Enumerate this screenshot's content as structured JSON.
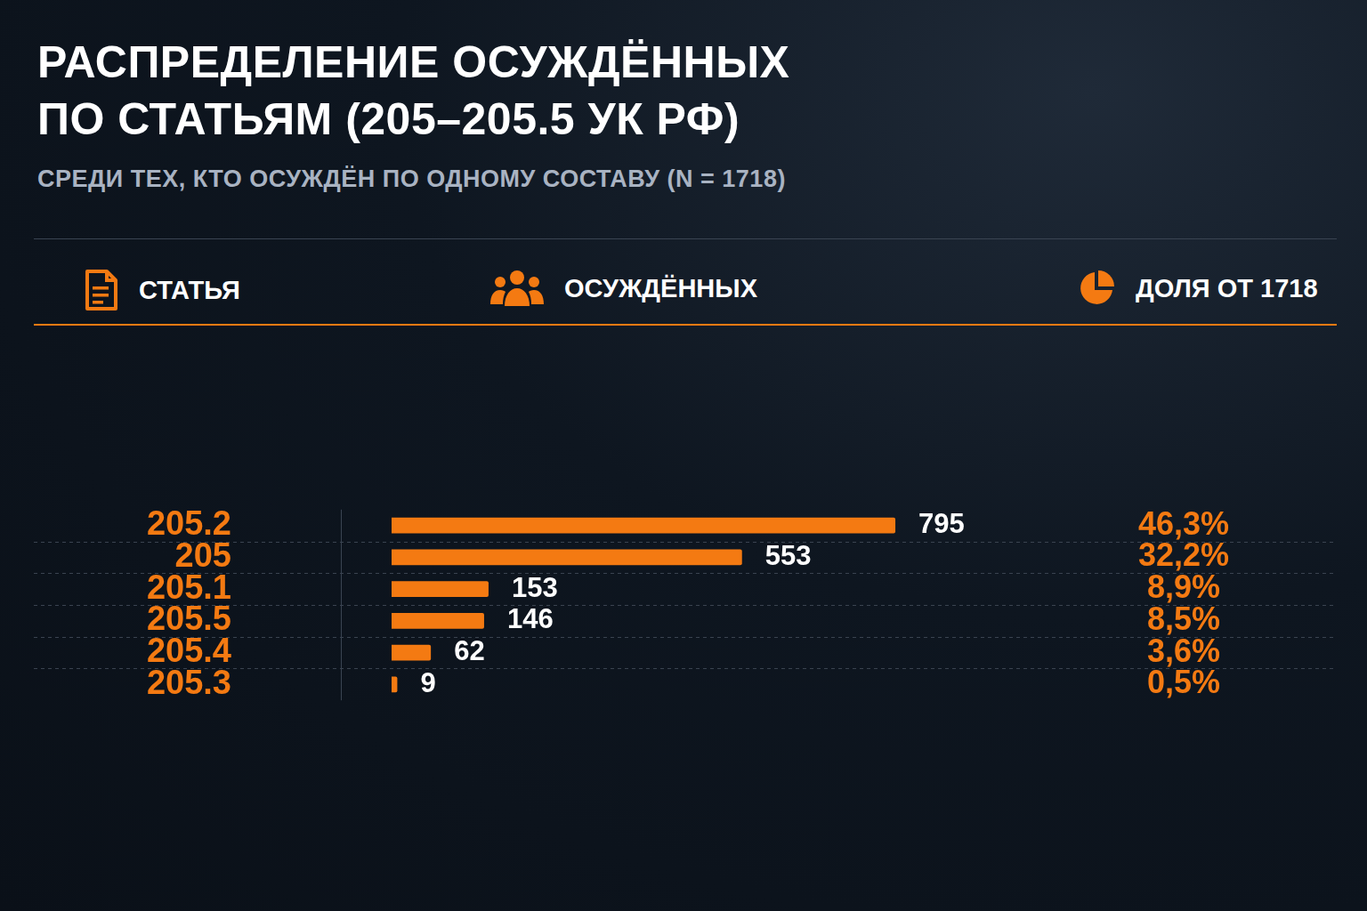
{
  "chart_data": {
    "type": "bar",
    "orientation": "horizontal",
    "title": "РАСПРЕДЕЛЕНИЕ ОСУЖДЁННЫХ\nПО СТАТЬЯМ (205–205.5 УК РФ)",
    "subtitle": "СРЕДИ ТЕХ, КТО ОСУЖДЁН ПО ОДНОМУ СОСТАВУ (N = 1718)",
    "column_headers": [
      "СТАТЬЯ",
      "ОСУЖДЁННЫХ",
      "ДОЛЯ ОТ 1718"
    ],
    "categories": [
      "205.2",
      "205",
      "205.1",
      "205.5",
      "205.4",
      "205.3"
    ],
    "values": [
      795,
      553,
      153,
      146,
      62,
      9
    ],
    "color": "#f47a12",
    "xlim": [
      0,
      1000
    ],
    "grid": false,
    "tick_labels": "y",
    "data_labels": true,
    "shares": {
      "values": [
        46.3,
        32.2,
        8.9,
        8.5,
        3.6,
        0.5
      ],
      "value_labels": [
        "46,3%",
        "32,2%",
        "8,9%",
        "8,5%",
        "3,6%",
        "0,5%"
      ]
    }
  }
}
